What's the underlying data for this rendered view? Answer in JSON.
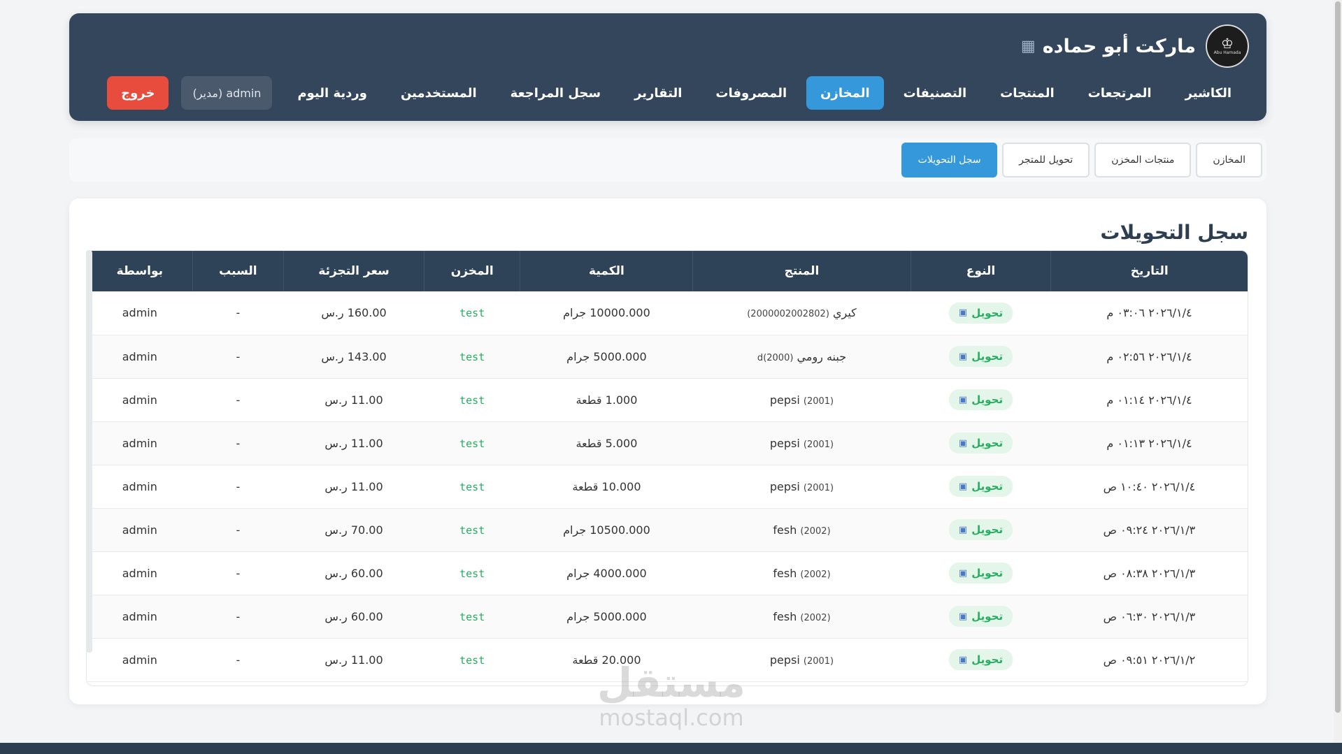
{
  "header": {
    "brand_title": "ماركت أبو حماده",
    "logo_text": "Abu Hamada",
    "nav": [
      {
        "label": "الكاشير",
        "active": false
      },
      {
        "label": "المرتجعات",
        "active": false
      },
      {
        "label": "المنتجات",
        "active": false
      },
      {
        "label": "التصنيفات",
        "active": false
      },
      {
        "label": "المخازن",
        "active": true
      },
      {
        "label": "المصروفات",
        "active": false
      },
      {
        "label": "التقارير",
        "active": false
      },
      {
        "label": "سجل المراجعة",
        "active": false
      },
      {
        "label": "المستخدمين",
        "active": false
      },
      {
        "label": "وردية اليوم",
        "active": false
      }
    ],
    "user_chip": "admin (مدير)",
    "logout_label": "خروج"
  },
  "subtabs": [
    {
      "label": "المخازن",
      "active": false
    },
    {
      "label": "منتجات المخزن",
      "active": false
    },
    {
      "label": "تحويل للمتجر",
      "active": false
    },
    {
      "label": "سجل التحويلات",
      "active": true
    }
  ],
  "transfers": {
    "title": "سجل التحويلات",
    "columns": [
      "التاريخ",
      "النوع",
      "المنتج",
      "الكمية",
      "المخزن",
      "سعر التجزئة",
      "السبب",
      "بواسطة"
    ],
    "rows": [
      {
        "date": "٢٠٢٦/١/٤ ٠٣:٠٦ م",
        "type": "تحويل",
        "product": "كيري",
        "code": "(2000002002802)",
        "qty": "10000.000 جرام",
        "store": "test",
        "price": "160.00 ر.س",
        "reason": "-",
        "by": "admin"
      },
      {
        "date": "٢٠٢٦/١/٤ ٠٢:٥٦ م",
        "type": "تحويل",
        "product": "جبنه رومي",
        "code": "(2000)d",
        "qty": "5000.000 جرام",
        "store": "test",
        "price": "143.00 ر.س",
        "reason": "-",
        "by": "admin"
      },
      {
        "date": "٢٠٢٦/١/٤ ٠١:١٤ م",
        "type": "تحويل",
        "product": "pepsi",
        "code": "(2001)",
        "qty": "1.000 قطعة",
        "store": "test",
        "price": "11.00 ر.س",
        "reason": "-",
        "by": "admin"
      },
      {
        "date": "٢٠٢٦/١/٤ ٠١:١٣ م",
        "type": "تحويل",
        "product": "pepsi",
        "code": "(2001)",
        "qty": "5.000 قطعة",
        "store": "test",
        "price": "11.00 ر.س",
        "reason": "-",
        "by": "admin"
      },
      {
        "date": "٢٠٢٦/١/٤ ١٠:٤٠ ص",
        "type": "تحويل",
        "product": "pepsi",
        "code": "(2001)",
        "qty": "10.000 قطعة",
        "store": "test",
        "price": "11.00 ر.س",
        "reason": "-",
        "by": "admin"
      },
      {
        "date": "٢٠٢٦/١/٣ ٠٩:٢٤ ص",
        "type": "تحويل",
        "product": "fesh",
        "code": "(2002)",
        "qty": "10500.000 جرام",
        "store": "test",
        "price": "70.00 ر.س",
        "reason": "-",
        "by": "admin"
      },
      {
        "date": "٢٠٢٦/١/٣ ٠٨:٣٨ ص",
        "type": "تحويل",
        "product": "fesh",
        "code": "(2002)",
        "qty": "4000.000 جرام",
        "store": "test",
        "price": "60.00 ر.س",
        "reason": "-",
        "by": "admin"
      },
      {
        "date": "٢٠٢٦/١/٣ ٠٦:٣٠ ص",
        "type": "تحويل",
        "product": "fesh",
        "code": "(2002)",
        "qty": "5000.000 جرام",
        "store": "test",
        "price": "60.00 ر.س",
        "reason": "-",
        "by": "admin"
      },
      {
        "date": "٢٠٢٦/١/٢ ٠٩:٥١ ص",
        "type": "تحويل",
        "product": "pepsi",
        "code": "(2001)",
        "qty": "20.000 قطعة",
        "store": "test",
        "price": "11.00 ر.س",
        "reason": "-",
        "by": "admin"
      }
    ]
  },
  "watermark": {
    "arabic": "مستقل",
    "latin": "mostaql.com"
  },
  "colors": {
    "header_bg": "#34465b",
    "accent": "#3498db",
    "danger": "#e74c3c",
    "success": "#27ae60"
  }
}
